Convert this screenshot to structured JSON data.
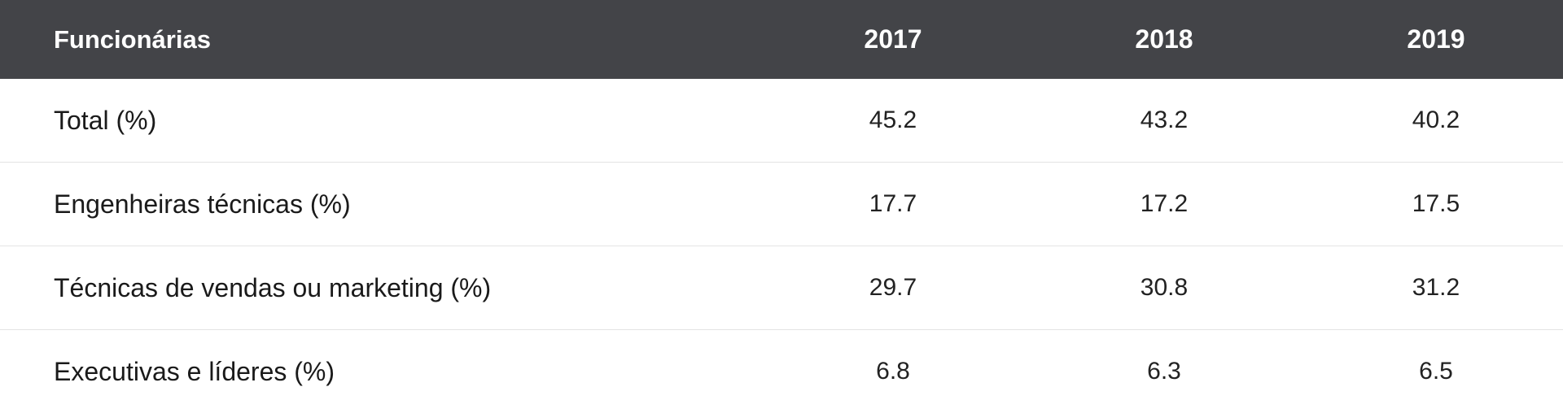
{
  "table": {
    "header": {
      "label": "Funcionárias",
      "years": [
        "2017",
        "2018",
        "2019"
      ]
    },
    "rows": [
      {
        "label": "Total (%)",
        "values": [
          "45.2",
          "43.2",
          "40.2"
        ]
      },
      {
        "label": "Engenheiras técnicas (%)",
        "values": [
          "17.7",
          "17.2",
          "17.5"
        ]
      },
      {
        "label": "Técnicas de vendas ou marketing (%)",
        "values": [
          "29.7",
          "30.8",
          "31.2"
        ]
      },
      {
        "label": "Executivas e líderes (%)",
        "values": [
          "6.8",
          "6.3",
          "6.5"
        ]
      }
    ]
  },
  "colors": {
    "header_background": "#434448",
    "header_text": "#ffffff",
    "body_text": "#1a1a1a",
    "row_divider": "#e4e4e4"
  }
}
